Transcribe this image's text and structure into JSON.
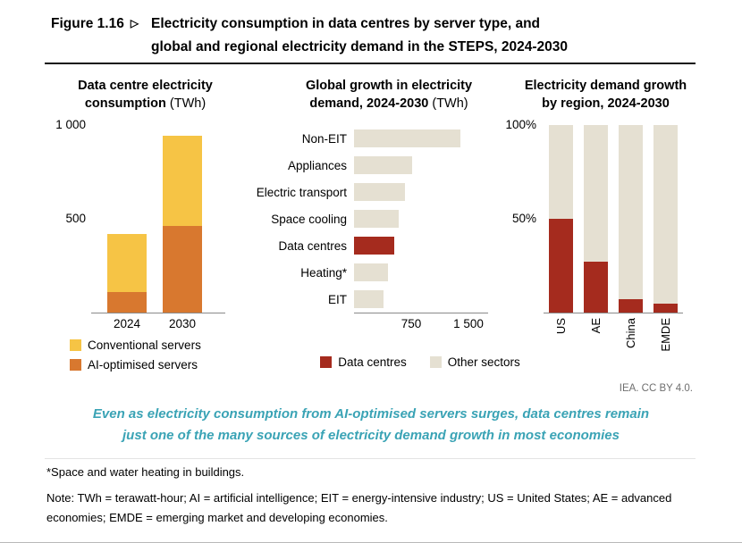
{
  "figure": {
    "label": "Figure 1.16",
    "arrow": "▷",
    "title_line1": "Electricity consumption in data centres by server type, and",
    "title_line2": "global and regional electricity demand in the STEPS, 2024-2030"
  },
  "colors": {
    "yellow": "#F6C445",
    "orange": "#D8782F",
    "red": "#A52B1E",
    "beige": "#E5E0D2",
    "teal": "#3AA3B5",
    "axis": "#8a8a8a"
  },
  "chart_data": [
    {
      "id": "datacentre_consumption",
      "type": "bar",
      "stacked": true,
      "title_lines": [
        "Data centre electricity",
        "consumption"
      ],
      "title_unit": "(TWh)",
      "categories": [
        "2024",
        "2030"
      ],
      "series": [
        {
          "name": "AI-optimised servers",
          "color_key": "orange",
          "values": [
            110,
            460
          ]
        },
        {
          "name": "Conventional servers",
          "color_key": "yellow",
          "values": [
            310,
            485
          ]
        }
      ],
      "ylim": [
        0,
        1000
      ],
      "yticks": [
        {
          "value": 1000,
          "label": "1 000"
        },
        {
          "value": 500,
          "label": "500"
        }
      ],
      "legend_position": "bottom-left",
      "grid": false
    },
    {
      "id": "global_growth",
      "type": "bar-horizontal",
      "title_lines": [
        "Global growth in electricity",
        "demand, 2024-2030"
      ],
      "title_unit": "(TWh)",
      "categories": [
        "Non-EIT",
        "Appliances",
        "Electric transport",
        "Space cooling",
        "Data centres",
        "Heating*",
        "EIT"
      ],
      "values": [
        1400,
        760,
        670,
        590,
        530,
        450,
        390
      ],
      "highlight_category": "Data centres",
      "xlim": [
        0,
        1500
      ],
      "xticks": [
        {
          "value": 750,
          "label": "750"
        },
        {
          "value": 1500,
          "label": "1 500"
        }
      ],
      "grid": false
    },
    {
      "id": "regional_growth",
      "type": "bar-stacked-100",
      "title_lines": [
        "Electricity demand growth",
        "by region, 2024-2030"
      ],
      "title_unit": "",
      "categories": [
        "US",
        "AE",
        "China",
        "EMDE"
      ],
      "series": [
        {
          "name": "Data centres",
          "color_key": "red",
          "values": [
            50,
            27,
            7,
            5
          ]
        },
        {
          "name": "Other sectors",
          "color_key": "beige",
          "values": [
            50,
            73,
            93,
            95
          ]
        }
      ],
      "ylim": [
        0,
        100
      ],
      "yticks": [
        {
          "value": 100,
          "label": "100%"
        },
        {
          "value": 50,
          "label": "50%"
        }
      ],
      "grid": false
    }
  ],
  "legends": {
    "left": [
      {
        "label": "Conventional servers",
        "color_key": "yellow"
      },
      {
        "label": "AI-optimised servers",
        "color_key": "orange"
      }
    ],
    "middle": [
      {
        "label": "Data centres",
        "color_key": "red"
      },
      {
        "label": "Other sectors",
        "color_key": "beige"
      }
    ]
  },
  "credit": "IEA. CC BY 4.0.",
  "caption_line1": "Even as electricity consumption from AI-optimised servers surges, data centres remain",
  "caption_line2": "just one of the many sources of electricity demand growth in most economies",
  "footnote_star": "*Space and water heating in buildings.",
  "footnote_note": "Note: TWh = terawatt-hour; AI = artificial intelligence; EIT = energy-intensive industry; US = United States; AE = advanced economies; EMDE = emerging market and developing economies."
}
